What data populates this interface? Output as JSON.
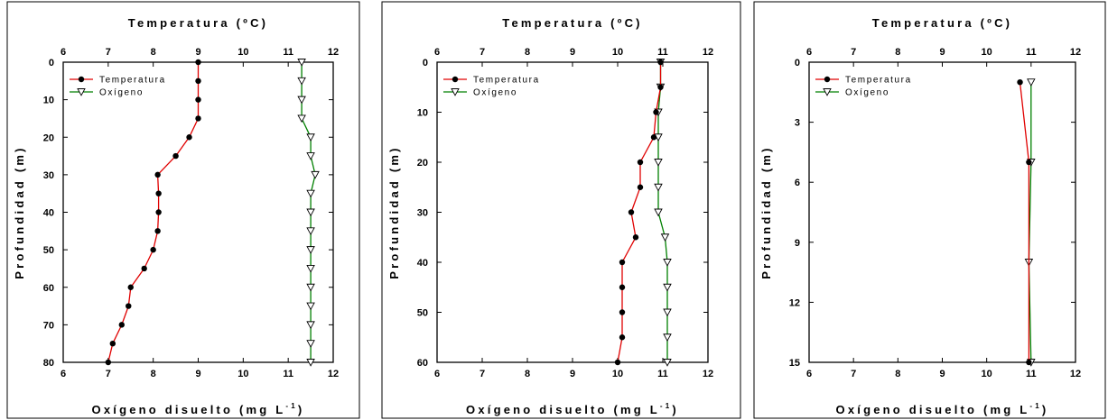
{
  "chart_data": [
    {
      "type": "line",
      "top_axis_label": "Temperatura (ºC)",
      "bottom_axis_label": "Oxígeno disuelto (mg L",
      "bottom_axis_superscript": "-1",
      "bottom_axis_suffix": ")",
      "ylabel": "Profundidad (m)",
      "xlim": [
        6,
        12
      ],
      "x_ticks": [
        6,
        7,
        8,
        9,
        10,
        11,
        12
      ],
      "ylim": [
        0,
        80
      ],
      "y_ticks": [
        0,
        10,
        20,
        30,
        40,
        50,
        60,
        70,
        80
      ],
      "y_inverted": true,
      "legend_position": "top-left",
      "series": [
        {
          "name": "Temperatura",
          "color": "#e00000",
          "marker": "filled-circle",
          "points": [
            [
              9.0,
              0
            ],
            [
              9.0,
              5
            ],
            [
              9.0,
              10
            ],
            [
              9.0,
              15
            ],
            [
              8.8,
              20
            ],
            [
              8.5,
              25
            ],
            [
              8.1,
              30
            ],
            [
              8.12,
              35
            ],
            [
              8.12,
              40
            ],
            [
              8.1,
              45
            ],
            [
              8.0,
              50
            ],
            [
              7.8,
              55
            ],
            [
              7.5,
              60
            ],
            [
              7.45,
              65
            ],
            [
              7.3,
              70
            ],
            [
              7.1,
              75
            ],
            [
              7.0,
              80
            ]
          ]
        },
        {
          "name": "Oxígeno",
          "color": "#008000",
          "marker": "open-triangle-down",
          "points": [
            [
              11.3,
              0
            ],
            [
              11.3,
              5
            ],
            [
              11.3,
              10
            ],
            [
              11.3,
              15
            ],
            [
              11.5,
              20
            ],
            [
              11.5,
              25
            ],
            [
              11.6,
              30
            ],
            [
              11.5,
              35
            ],
            [
              11.5,
              40
            ],
            [
              11.5,
              45
            ],
            [
              11.5,
              50
            ],
            [
              11.5,
              55
            ],
            [
              11.5,
              60
            ],
            [
              11.5,
              65
            ],
            [
              11.5,
              70
            ],
            [
              11.5,
              75
            ],
            [
              11.5,
              80
            ]
          ]
        }
      ]
    },
    {
      "type": "line",
      "top_axis_label": "Temperatura (ºC)",
      "bottom_axis_label": "Oxígeno disuelto (mg L",
      "bottom_axis_superscript": "-1",
      "bottom_axis_suffix": ")",
      "ylabel": "Profundidad (m)",
      "xlim": [
        6,
        12
      ],
      "x_ticks": [
        6,
        7,
        8,
        9,
        10,
        11,
        12
      ],
      "ylim": [
        0,
        60
      ],
      "y_ticks": [
        0,
        10,
        20,
        30,
        40,
        50,
        60
      ],
      "y_inverted": true,
      "legend_position": "top-left",
      "series": [
        {
          "name": "Temperatura",
          "color": "#e00000",
          "marker": "filled-circle",
          "points": [
            [
              10.95,
              0
            ],
            [
              10.95,
              5
            ],
            [
              10.85,
              10
            ],
            [
              10.8,
              15
            ],
            [
              10.5,
              20
            ],
            [
              10.5,
              25
            ],
            [
              10.3,
              30
            ],
            [
              10.4,
              35
            ],
            [
              10.1,
              40
            ],
            [
              10.1,
              45
            ],
            [
              10.1,
              50
            ],
            [
              10.1,
              55
            ],
            [
              10.0,
              60
            ]
          ]
        },
        {
          "name": "Oxígeno",
          "color": "#008000",
          "marker": "open-triangle-down",
          "points": [
            [
              10.95,
              0
            ],
            [
              10.95,
              5
            ],
            [
              10.9,
              10
            ],
            [
              10.9,
              15
            ],
            [
              10.9,
              20
            ],
            [
              10.9,
              25
            ],
            [
              10.9,
              30
            ],
            [
              11.05,
              35
            ],
            [
              11.1,
              40
            ],
            [
              11.1,
              45
            ],
            [
              11.1,
              50
            ],
            [
              11.1,
              55
            ],
            [
              11.1,
              60
            ]
          ]
        }
      ]
    },
    {
      "type": "line",
      "top_axis_label": "Temperatura (ºC)",
      "bottom_axis_label": "Oxígeno disuelto (mg L",
      "bottom_axis_superscript": "-1",
      "bottom_axis_suffix": ")",
      "ylabel": "Profundidad (m)",
      "xlim": [
        6,
        12
      ],
      "x_ticks": [
        6,
        7,
        8,
        9,
        10,
        11,
        12
      ],
      "ylim": [
        0,
        15
      ],
      "y_ticks": [
        0,
        3,
        6,
        9,
        12,
        15
      ],
      "y_inverted": true,
      "legend_position": "top-left",
      "series": [
        {
          "name": "Temperatura",
          "color": "#e00000",
          "marker": "filled-circle",
          "points": [
            [
              10.75,
              1
            ],
            [
              10.95,
              5
            ],
            [
              10.95,
              15
            ]
          ]
        },
        {
          "name": "Oxígeno",
          "color": "#008000",
          "marker": "open-triangle-down",
          "points": [
            [
              11.0,
              1
            ],
            [
              11.0,
              5
            ],
            [
              10.95,
              10
            ],
            [
              11.0,
              15
            ]
          ]
        }
      ]
    }
  ]
}
